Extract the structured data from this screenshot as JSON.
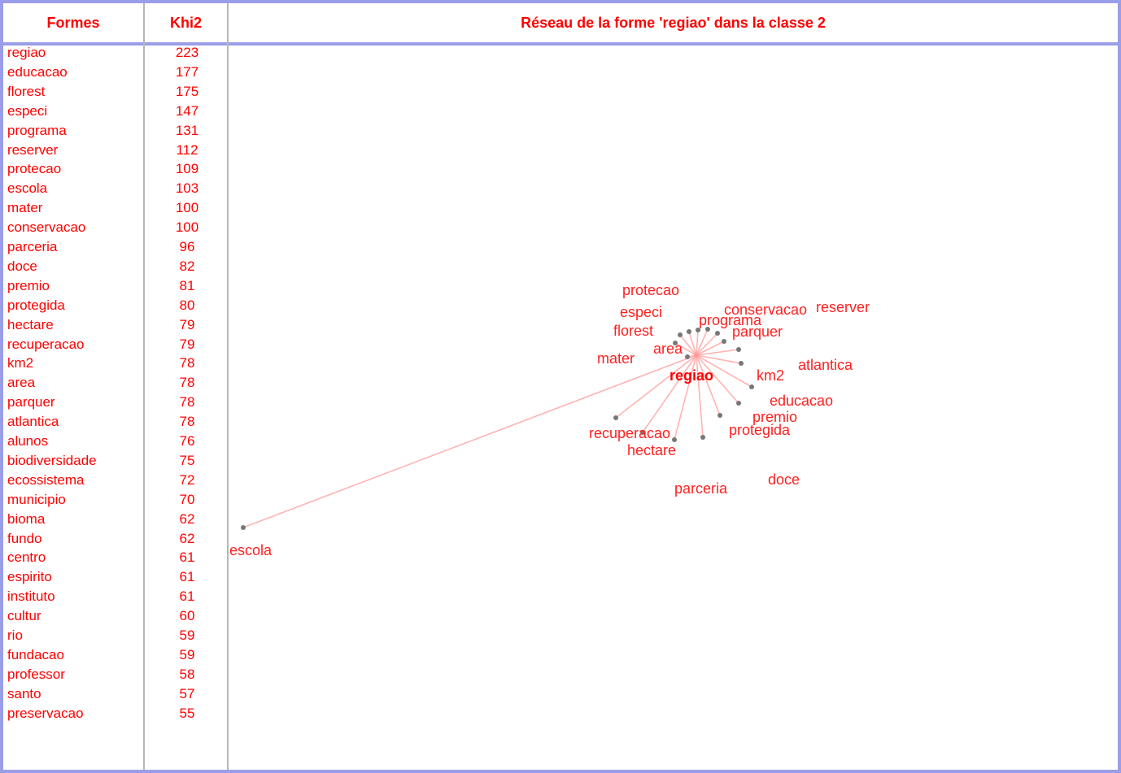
{
  "header": {
    "col_formes": "Formes",
    "col_khi2": "Khi2",
    "network_title": "Réseau de la forme 'regiao' dans la classe 2"
  },
  "list": [
    {
      "forme": "regiao",
      "khi2": "223"
    },
    {
      "forme": "educacao",
      "khi2": "177"
    },
    {
      "forme": "florest",
      "khi2": "175"
    },
    {
      "forme": "especi",
      "khi2": "147"
    },
    {
      "forme": "programa",
      "khi2": "131"
    },
    {
      "forme": "reserver",
      "khi2": "112"
    },
    {
      "forme": "protecao",
      "khi2": "109"
    },
    {
      "forme": "escola",
      "khi2": "103"
    },
    {
      "forme": "mater",
      "khi2": "100"
    },
    {
      "forme": "conservacao",
      "khi2": "100"
    },
    {
      "forme": "parceria",
      "khi2": "96"
    },
    {
      "forme": "doce",
      "khi2": "82"
    },
    {
      "forme": "premio",
      "khi2": "81"
    },
    {
      "forme": "protegida",
      "khi2": "80"
    },
    {
      "forme": "hectare",
      "khi2": "79"
    },
    {
      "forme": "recuperacao",
      "khi2": "79"
    },
    {
      "forme": "km2",
      "khi2": "78"
    },
    {
      "forme": "area",
      "khi2": "78"
    },
    {
      "forme": "parquer",
      "khi2": "78"
    },
    {
      "forme": "atlantica",
      "khi2": "78"
    },
    {
      "forme": "alunos",
      "khi2": "76"
    },
    {
      "forme": "biodiversidade",
      "khi2": "75"
    },
    {
      "forme": "ecossistema",
      "khi2": "72"
    },
    {
      "forme": "municipio",
      "khi2": "70"
    },
    {
      "forme": "bioma",
      "khi2": "62"
    },
    {
      "forme": "fundo",
      "khi2": "62"
    },
    {
      "forme": "centro",
      "khi2": "61"
    },
    {
      "forme": "espirito",
      "khi2": "61"
    },
    {
      "forme": "instituto",
      "khi2": "61"
    },
    {
      "forme": "cultur",
      "khi2": "60"
    },
    {
      "forme": "rio",
      "khi2": "59"
    },
    {
      "forme": "fundacao",
      "khi2": "59"
    },
    {
      "forme": "professor",
      "khi2": "58"
    },
    {
      "forme": "santo",
      "khi2": "57"
    },
    {
      "forme": "preservacao",
      "khi2": "55"
    }
  ],
  "network": {
    "center_word": "regiao",
    "words": [
      "protecao",
      "especi",
      "florest",
      "programa",
      "conservacao",
      "reserver",
      "parquer",
      "area",
      "mater",
      "atlantica",
      "km2",
      "educacao",
      "premio",
      "protegida",
      "recuperacao",
      "hectare",
      "parceria",
      "doce",
      "escola"
    ]
  },
  "colors": {
    "text": "#ff0000",
    "border": "#9a9ee8",
    "divider": "#b7b7b7",
    "edge": "#ffb3b3",
    "node": "#777777"
  }
}
